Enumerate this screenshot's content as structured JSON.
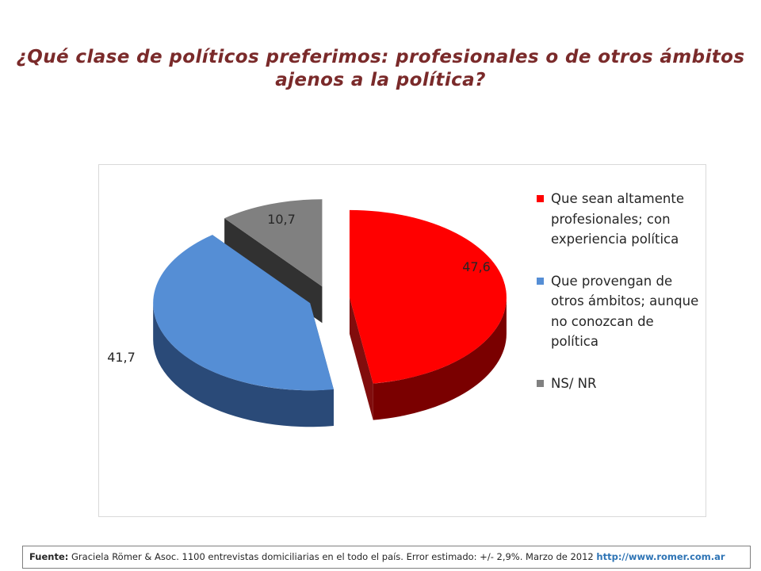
{
  "title": {
    "line1": "¿Qué clase de políticos preferimos: profesionales o de otros ámbitos",
    "line2": "ajenos a la política?"
  },
  "chart_data": {
    "type": "pie",
    "style": "3d-exploded",
    "slices": [
      {
        "label": "Que sean altamente profesionales; con experiencia política",
        "value": 47.6,
        "value_label": "47,6",
        "color": "#ff0000",
        "side_color": "#7a0000"
      },
      {
        "label": "Que provengan de otros ámbitos; aunque no conozcan de política",
        "value": 41.7,
        "value_label": "41,7",
        "color": "#558ed5",
        "side_color": "#2a4a78"
      },
      {
        "label": "NS/ NR",
        "value": 10.7,
        "value_label": "10,7",
        "color": "#808080",
        "side_color": "#262626"
      }
    ],
    "legend_position": "right"
  },
  "legend": {
    "items": [
      {
        "text": "Que sean altamente profesionales; con experiencia política",
        "color": "#ff0000"
      },
      {
        "text": "Que provengan de otros ámbitos; aunque no conozcan de política",
        "color": "#558ed5"
      },
      {
        "text": "NS/ NR",
        "color": "#808080"
      }
    ]
  },
  "footer": {
    "label": "Fuente:",
    "text": " Graciela Römer & Asoc. 1100 entrevistas domiciliarias en el todo el país. Error estimado: +/- 2,9%. Marzo de 2012 ",
    "link": "http://www.romer.com.ar"
  }
}
